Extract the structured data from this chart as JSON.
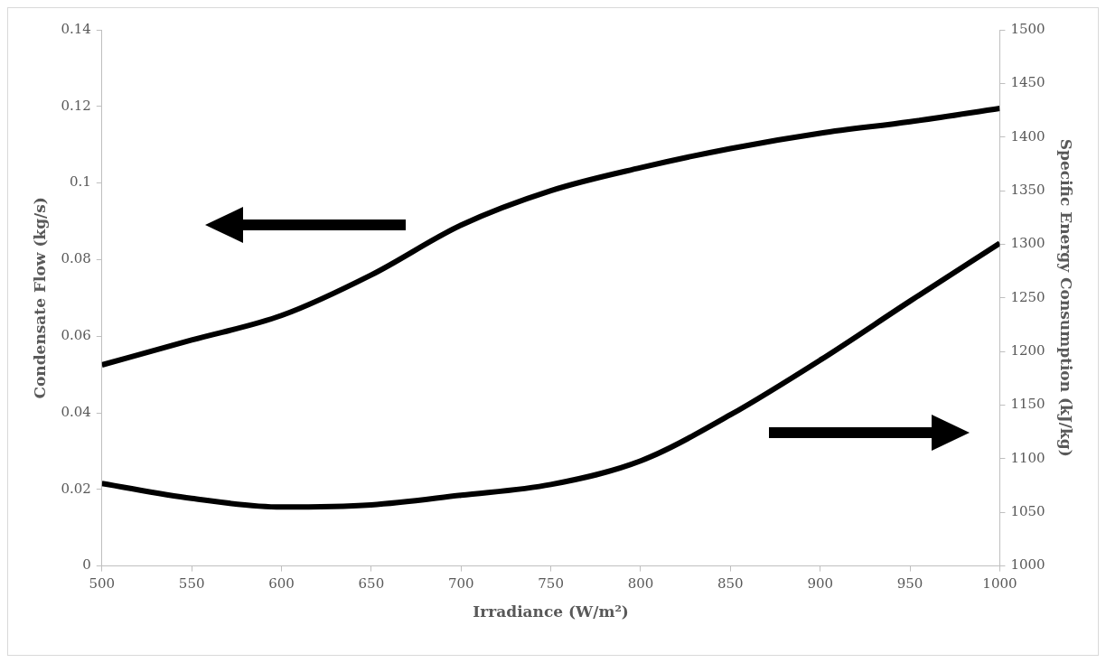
{
  "chart_data": {
    "type": "line",
    "xlabel": "Irradiance (W/m²)",
    "ylabel": "Condensate Flow (kg/s)",
    "y2label": "Specific Energy Consumption (kJ/kg)",
    "x": [
      500,
      550,
      600,
      650,
      700,
      750,
      800,
      850,
      900,
      950,
      1000
    ],
    "series": [
      {
        "color": "#000000",
        "values": [
          0.0525,
          0.059,
          0.0654,
          0.076,
          0.089,
          0.098,
          0.104,
          0.109,
          0.113,
          0.116,
          0.1195
        ]
      },
      {
        "color": "#000000",
        "axis": "y2",
        "values": [
          1077,
          1063,
          1055,
          1057,
          1066,
          1076,
          1098,
          1141,
          1192,
          1247,
          1301
        ]
      }
    ],
    "xlim": [
      500,
      1000
    ],
    "xticks": [
      500,
      550,
      600,
      650,
      700,
      750,
      800,
      850,
      900,
      950,
      1000
    ],
    "ylim": [
      0,
      0.14
    ],
    "yticks": [
      0,
      0.02,
      0.04,
      0.06,
      0.08,
      0.1,
      0.12,
      0.14
    ],
    "y2lim": [
      1000,
      1500
    ],
    "y2ticks": [
      1000,
      1050,
      1100,
      1150,
      1200,
      1250,
      1300,
      1350,
      1400,
      1450,
      1500
    ],
    "grid": false,
    "legend": false,
    "marker": "none",
    "line_style": "solid"
  }
}
